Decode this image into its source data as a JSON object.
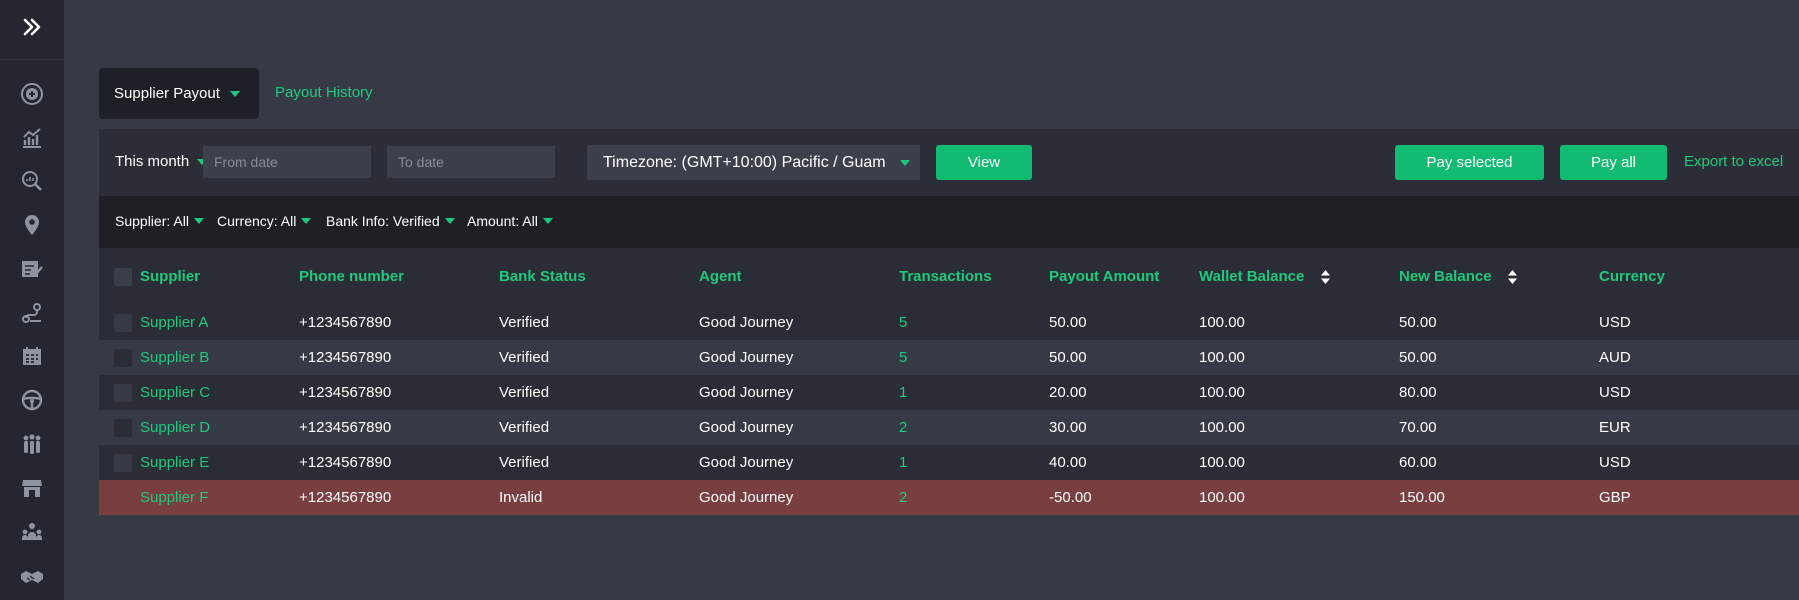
{
  "tabs": {
    "active_label": "Supplier Payout",
    "link_label": "Payout History"
  },
  "toolbar": {
    "period": "This month",
    "from_placeholder": "From date",
    "to_placeholder": "To date",
    "timezone": "Timezone: (GMT+10:00) Pacific / Guam",
    "view_label": "View",
    "pay_selected_label": "Pay selected",
    "pay_all_label": "Pay all",
    "export_label": "Export to excel"
  },
  "filters": [
    "Supplier: All",
    "Currency: All",
    "Bank Info: Verified",
    "Amount: All"
  ],
  "table": {
    "columns": [
      "Supplier",
      "Phone number",
      "Bank Status",
      "Agent",
      "Transactions",
      "Payout Amount",
      "Wallet Balance",
      "New Balance",
      "Currency"
    ],
    "rows": [
      {
        "supplier": "Supplier A",
        "phone": "+1234567890",
        "bank_status": "Verified",
        "agent": "Good Journey",
        "transactions": "5",
        "payout": "50.00",
        "wallet": "100.00",
        "new_balance": "50.00",
        "currency": "USD"
      },
      {
        "supplier": "Supplier B",
        "phone": "+1234567890",
        "bank_status": "Verified",
        "agent": "Good Journey",
        "transactions": "5",
        "payout": "50.00",
        "wallet": "100.00",
        "new_balance": "50.00",
        "currency": "AUD"
      },
      {
        "supplier": "Supplier C",
        "phone": "+1234567890",
        "bank_status": "Verified",
        "agent": "Good Journey",
        "transactions": "1",
        "payout": "20.00",
        "wallet": "100.00",
        "new_balance": "80.00",
        "currency": "USD"
      },
      {
        "supplier": "Supplier D",
        "phone": "+1234567890",
        "bank_status": "Verified",
        "agent": "Good Journey",
        "transactions": "2",
        "payout": "30.00",
        "wallet": "100.00",
        "new_balance": "70.00",
        "currency": "EUR"
      },
      {
        "supplier": "Supplier E",
        "phone": "+1234567890",
        "bank_status": "Verified",
        "agent": "Good Journey",
        "transactions": "1",
        "payout": "40.00",
        "wallet": "100.00",
        "new_balance": "60.00",
        "currency": "USD"
      },
      {
        "supplier": "Supplier F",
        "phone": "+1234567890",
        "bank_status": "Invalid",
        "agent": "Good Journey",
        "transactions": "2",
        "payout": "-50.00",
        "wallet": "100.00",
        "new_balance": "150.00",
        "currency": "GBP"
      }
    ]
  },
  "sidebar": {
    "icons": [
      "expand-icon",
      "add-circle-icon",
      "analytics-icon",
      "search-report-icon",
      "location-pin-icon",
      "task-list-icon",
      "route-icon",
      "calendar-icon",
      "steering-wheel-icon",
      "team-icon",
      "store-icon",
      "agents-icon",
      "handshake-icon"
    ]
  },
  "colors": {
    "accent": "#1ec97e",
    "button": "#11bb72",
    "background": "#363a45",
    "sidebar": "#24272f",
    "invalid_row": "#793e40"
  }
}
